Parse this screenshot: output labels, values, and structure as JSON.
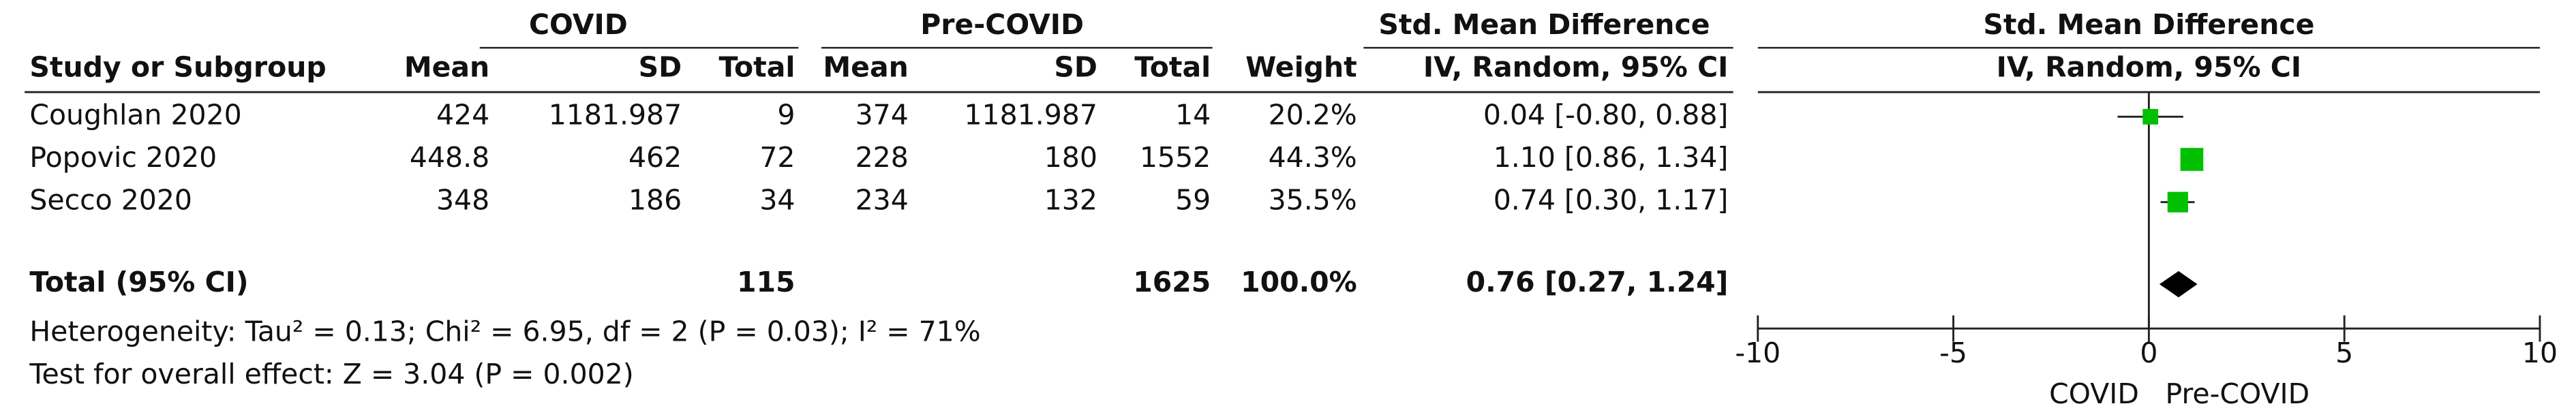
{
  "chart_data": {
    "type": "forest",
    "group_headers": {
      "covid": "COVID",
      "pre": "Pre-COVID",
      "effect": "Std. Mean Difference"
    },
    "columns": [
      "Study or Subgroup",
      "Mean",
      "SD",
      "Total",
      "Mean",
      "SD",
      "Total",
      "Weight",
      "IV, Random, 95% CI"
    ],
    "plot_title": "Std. Mean Difference",
    "plot_subtitle": "IV, Random, 95% CI",
    "studies": [
      {
        "name": "Coughlan 2020",
        "covid": {
          "mean": 424,
          "sd": 1181.987,
          "total": 9
        },
        "pre": {
          "mean": 374,
          "sd": 1181.987,
          "total": 14
        },
        "weight": 20.2,
        "weight_label": "20.2%",
        "effect": 0.04,
        "ci": [
          -0.8,
          0.88
        ],
        "effect_label": "0.04 [-0.80, 0.88]"
      },
      {
        "name": "Popovic 2020",
        "covid": {
          "mean": 448.8,
          "sd": 462,
          "total": 72
        },
        "pre": {
          "mean": 228,
          "sd": 180,
          "total": 1552
        },
        "weight": 44.3,
        "weight_label": "44.3%",
        "effect": 1.1,
        "ci": [
          0.86,
          1.34
        ],
        "effect_label": "1.10 [0.86, 1.34]"
      },
      {
        "name": "Secco 2020",
        "covid": {
          "mean": 348,
          "sd": 186,
          "total": 34
        },
        "pre": {
          "mean": 234,
          "sd": 132,
          "total": 59
        },
        "weight": 35.5,
        "weight_label": "35.5%",
        "effect": 0.74,
        "ci": [
          0.3,
          1.17
        ],
        "effect_label": "0.74 [0.30, 1.17]"
      }
    ],
    "total": {
      "name": "Total (95% CI)",
      "covid_total": 115,
      "pre_total": 1625,
      "weight": 100.0,
      "weight_label": "100.0%",
      "effect": 0.76,
      "ci": [
        0.27,
        1.24
      ],
      "effect_label": "0.76 [0.27, 1.24]"
    },
    "heterogeneity": "Heterogeneity: Tau² = 0.13; Chi² = 6.95, df = 2 (P = 0.03); I² = 71%",
    "overall_effect": "Test for overall effect: Z = 3.04 (P = 0.002)",
    "xlim": [
      -10,
      10
    ],
    "xticks": [
      -10,
      -5,
      0,
      5,
      10
    ],
    "favours": [
      "COVID",
      "Pre-COVID"
    ],
    "study_color": "#00c000",
    "total_color": "#000000"
  }
}
